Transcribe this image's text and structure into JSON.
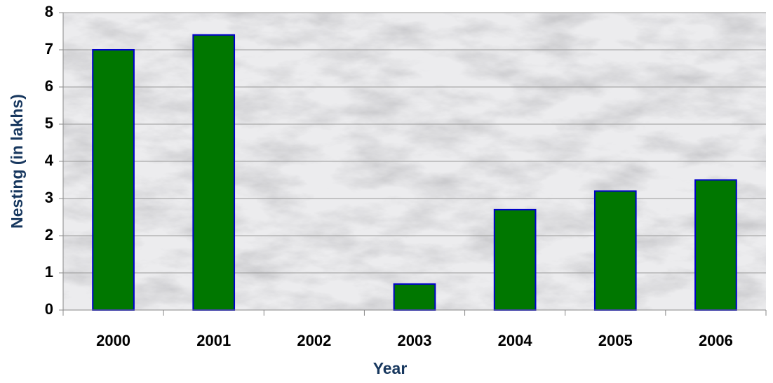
{
  "chart_data": {
    "type": "bar",
    "categories": [
      "2000",
      "2001",
      "2002",
      "2003",
      "2004",
      "2005",
      "2006"
    ],
    "values": [
      7,
      7.4,
      null,
      0.7,
      2.7,
      3.2,
      3.5
    ],
    "color": "#007700",
    "edge_color": "#0000cc",
    "xlabel": "Year",
    "ylabel": "Nesting (in lakhs)",
    "ylim": [
      0,
      8
    ],
    "yticks": [
      0,
      1,
      2,
      3,
      4,
      5,
      6,
      7,
      8
    ],
    "grid": true
  }
}
